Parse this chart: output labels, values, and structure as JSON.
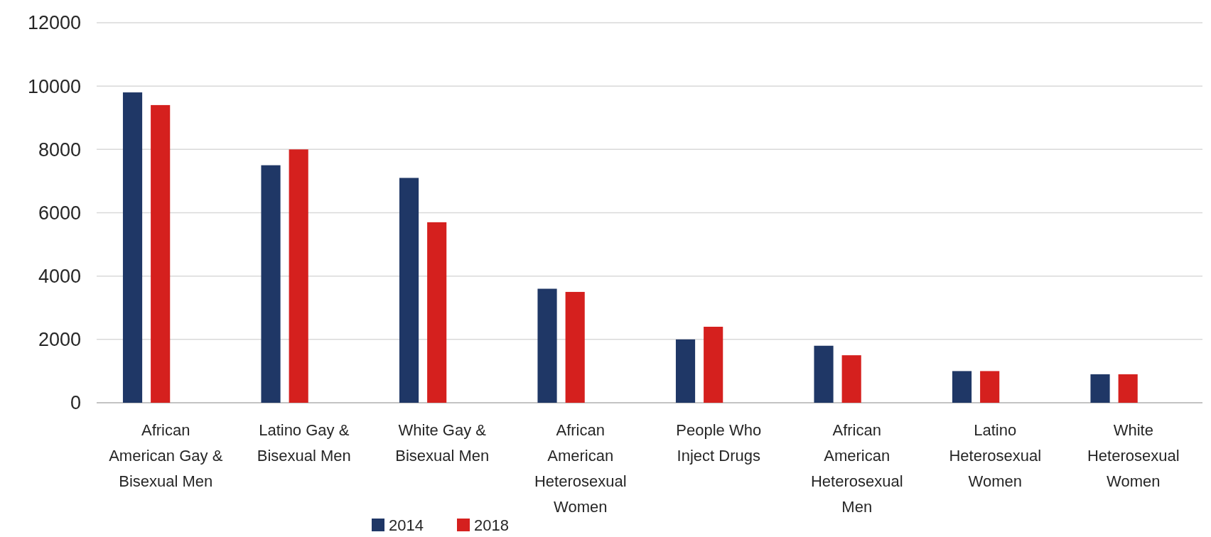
{
  "chart_data": {
    "type": "bar",
    "categories": [
      "African American Gay & Bisexual Men",
      "Latino Gay & Bisexual Men",
      "White Gay & Bisexual Men",
      "African American Heterosexual Women",
      "People Who Inject Drugs",
      "African American Heterosexual Men",
      "Latino Heterosexual Women",
      "White Heterosexual Women"
    ],
    "series": [
      {
        "name": "2014",
        "color": "#1f3766",
        "values": [
          9800,
          7500,
          7100,
          3600,
          2000,
          1800,
          1000,
          900
        ]
      },
      {
        "name": "2018",
        "color": "#d5201e",
        "values": [
          9400,
          8000,
          5700,
          3500,
          2400,
          1500,
          1000,
          900
        ]
      }
    ],
    "ylim": [
      0,
      12000
    ],
    "yticks": [
      0,
      2000,
      4000,
      6000,
      8000,
      10000,
      12000
    ],
    "grid": "y",
    "legend": "bottom"
  }
}
